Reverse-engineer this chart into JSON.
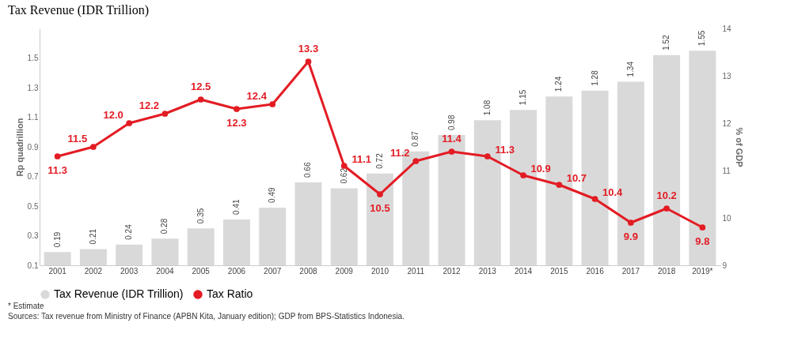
{
  "chart_data": {
    "type": "bar",
    "title": "Tax Revenue (IDR Trillion)",
    "ylabel": "Rp quadrillion",
    "y2label": "% of GDP",
    "categories": [
      "2001",
      "2002",
      "2003",
      "2004",
      "2005",
      "2006",
      "2007",
      "2008",
      "2009",
      "2010",
      "2011",
      "2012",
      "2013",
      "2014",
      "2015",
      "2016",
      "2017",
      "2018",
      "2019*"
    ],
    "series": [
      {
        "name": "Tax Revenue (IDR Trillion)",
        "color": "#d9d9d9",
        "values": [
          0.19,
          0.21,
          0.24,
          0.28,
          0.35,
          0.41,
          0.49,
          0.66,
          0.62,
          0.72,
          0.87,
          0.98,
          1.08,
          1.15,
          1.24,
          1.28,
          1.34,
          1.52,
          1.55
        ]
      },
      {
        "name": "Tax Ratio",
        "type": "line",
        "axis": "y2",
        "color": "#e31b23",
        "values": [
          11.3,
          11.5,
          12.0,
          12.2,
          12.5,
          12.3,
          12.4,
          13.3,
          11.1,
          10.5,
          11.2,
          11.4,
          11.3,
          10.9,
          10.7,
          10.4,
          9.9,
          10.2,
          9.8
        ],
        "value_labels": [
          "11.3",
          "11.5",
          "12.0",
          "12.2",
          "12.5",
          "12.3",
          "12.4",
          "13.3",
          "11.1",
          "10.5",
          "11.2",
          "11.4",
          "11.3",
          "10.9",
          "10.7",
          "10.4",
          "9.9",
          "10.2",
          "9.8"
        ]
      }
    ],
    "ylim": [
      0.1,
      1.7
    ],
    "yticks": [
      0.1,
      0.3,
      0.5,
      0.7,
      0.9,
      1.1,
      1.3,
      1.5
    ],
    "y2lim": [
      9,
      14
    ],
    "y2ticks": [
      9,
      10,
      11,
      12,
      13,
      14
    ],
    "data_labels": true,
    "grid": false,
    "legend": "bottom",
    "marker": "circle",
    "line_style": "solid",
    "annotations": [
      "* Estimate",
      "Sources: Tax revenue from Ministry of Finance (APBN Kita, January edition); GDP from BPS-Statistics Indonesia."
    ]
  }
}
